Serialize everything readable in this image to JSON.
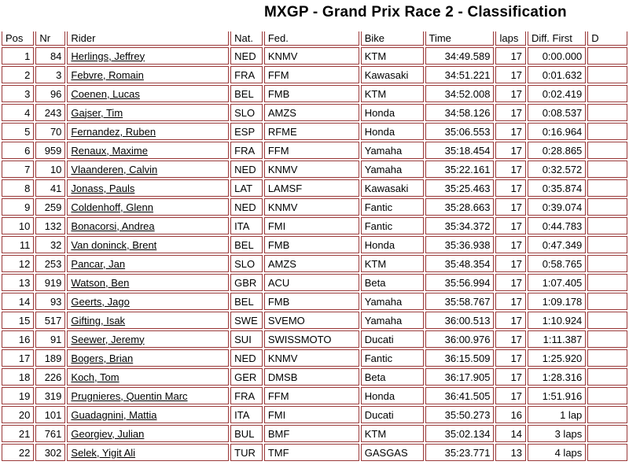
{
  "title": "MXGP - Grand Prix Race 2 - Classification",
  "colors": {
    "table_border": "#9a3939",
    "text": "#000000"
  },
  "table": {
    "columns": {
      "pos": "Pos",
      "nr": "Nr",
      "rider": "Rider",
      "nat": "Nat.",
      "fed": "Fed.",
      "bike": "Bike",
      "time": "Time",
      "laps": "laps",
      "diff": "Diff. First",
      "next_clipped": "D"
    },
    "rows": [
      {
        "pos": "1",
        "nr": "84",
        "rider": "Herlings, Jeffrey",
        "nat": "NED",
        "fed": "KNMV",
        "bike": "KTM",
        "time": "34:49.589",
        "laps": "17",
        "diff": "0:00.000",
        "next": ""
      },
      {
        "pos": "2",
        "nr": "3",
        "rider": "Febvre, Romain",
        "nat": "FRA",
        "fed": "FFM",
        "bike": "Kawasaki",
        "time": "34:51.221",
        "laps": "17",
        "diff": "0:01.632",
        "next": ""
      },
      {
        "pos": "3",
        "nr": "96",
        "rider": "Coenen, Lucas",
        "nat": "BEL",
        "fed": "FMB",
        "bike": "KTM",
        "time": "34:52.008",
        "laps": "17",
        "diff": "0:02.419",
        "next": ""
      },
      {
        "pos": "4",
        "nr": "243",
        "rider": "Gajser, Tim",
        "nat": "SLO",
        "fed": "AMZS",
        "bike": "Honda",
        "time": "34:58.126",
        "laps": "17",
        "diff": "0:08.537",
        "next": ""
      },
      {
        "pos": "5",
        "nr": "70",
        "rider": "Fernandez, Ruben",
        "nat": "ESP",
        "fed": "RFME",
        "bike": "Honda",
        "time": "35:06.553",
        "laps": "17",
        "diff": "0:16.964",
        "next": ""
      },
      {
        "pos": "6",
        "nr": "959",
        "rider": "Renaux, Maxime",
        "nat": "FRA",
        "fed": "FFM",
        "bike": "Yamaha",
        "time": "35:18.454",
        "laps": "17",
        "diff": "0:28.865",
        "next": ""
      },
      {
        "pos": "7",
        "nr": "10",
        "rider": "Vlaanderen, Calvin",
        "nat": "NED",
        "fed": "KNMV",
        "bike": "Yamaha",
        "time": "35:22.161",
        "laps": "17",
        "diff": "0:32.572",
        "next": ""
      },
      {
        "pos": "8",
        "nr": "41",
        "rider": "Jonass, Pauls",
        "nat": "LAT",
        "fed": "LAMSF",
        "bike": "Kawasaki",
        "time": "35:25.463",
        "laps": "17",
        "diff": "0:35.874",
        "next": ""
      },
      {
        "pos": "9",
        "nr": "259",
        "rider": "Coldenhoff, Glenn",
        "nat": "NED",
        "fed": "KNMV",
        "bike": "Fantic",
        "time": "35:28.663",
        "laps": "17",
        "diff": "0:39.074",
        "next": ""
      },
      {
        "pos": "10",
        "nr": "132",
        "rider": "Bonacorsi, Andrea",
        "nat": "ITA",
        "fed": "FMI",
        "bike": "Fantic",
        "time": "35:34.372",
        "laps": "17",
        "diff": "0:44.783",
        "next": ""
      },
      {
        "pos": "11",
        "nr": "32",
        "rider": "Van doninck, Brent",
        "nat": "BEL",
        "fed": "FMB",
        "bike": "Honda",
        "time": "35:36.938",
        "laps": "17",
        "diff": "0:47.349",
        "next": ""
      },
      {
        "pos": "12",
        "nr": "253",
        "rider": "Pancar, Jan",
        "nat": "SLO",
        "fed": "AMZS",
        "bike": "KTM",
        "time": "35:48.354",
        "laps": "17",
        "diff": "0:58.765",
        "next": ""
      },
      {
        "pos": "13",
        "nr": "919",
        "rider": "Watson, Ben",
        "nat": "GBR",
        "fed": "ACU",
        "bike": "Beta",
        "time": "35:56.994",
        "laps": "17",
        "diff": "1:07.405",
        "next": ""
      },
      {
        "pos": "14",
        "nr": "93",
        "rider": "Geerts, Jago",
        "nat": "BEL",
        "fed": "FMB",
        "bike": "Yamaha",
        "time": "35:58.767",
        "laps": "17",
        "diff": "1:09.178",
        "next": ""
      },
      {
        "pos": "15",
        "nr": "517",
        "rider": "Gifting, Isak",
        "nat": "SWE",
        "fed": "SVEMO",
        "bike": "Yamaha",
        "time": "36:00.513",
        "laps": "17",
        "diff": "1:10.924",
        "next": ""
      },
      {
        "pos": "16",
        "nr": "91",
        "rider": "Seewer, Jeremy",
        "nat": "SUI",
        "fed": "SWISSMOTO",
        "bike": "Ducati",
        "time": "36:00.976",
        "laps": "17",
        "diff": "1:11.387",
        "next": ""
      },
      {
        "pos": "17",
        "nr": "189",
        "rider": "Bogers, Brian",
        "nat": "NED",
        "fed": "KNMV",
        "bike": "Fantic",
        "time": "36:15.509",
        "laps": "17",
        "diff": "1:25.920",
        "next": ""
      },
      {
        "pos": "18",
        "nr": "226",
        "rider": "Koch, Tom",
        "nat": "GER",
        "fed": "DMSB",
        "bike": "Beta",
        "time": "36:17.905",
        "laps": "17",
        "diff": "1:28.316",
        "next": ""
      },
      {
        "pos": "19",
        "nr": "319",
        "rider": "Prugnieres, Quentin Marc",
        "nat": "FRA",
        "fed": "FFM",
        "bike": "Honda",
        "time": "36:41.505",
        "laps": "17",
        "diff": "1:51.916",
        "next": ""
      },
      {
        "pos": "20",
        "nr": "101",
        "rider": "Guadagnini, Mattia",
        "nat": "ITA",
        "fed": "FMI",
        "bike": "Ducati",
        "time": "35:50.273",
        "laps": "16",
        "diff": "1 lap",
        "next": ""
      },
      {
        "pos": "21",
        "nr": "761",
        "rider": "Georgiev, Julian",
        "nat": "BUL",
        "fed": "BMF",
        "bike": "KTM",
        "time": "35:02.134",
        "laps": "14",
        "diff": "3 laps",
        "next": ""
      },
      {
        "pos": "22",
        "nr": "302",
        "rider": "Selek, Yigit Ali",
        "nat": "TUR",
        "fed": "TMF",
        "bike": "GASGAS",
        "time": "35:23.771",
        "laps": "13",
        "diff": "4 laps",
        "next": ""
      }
    ]
  }
}
